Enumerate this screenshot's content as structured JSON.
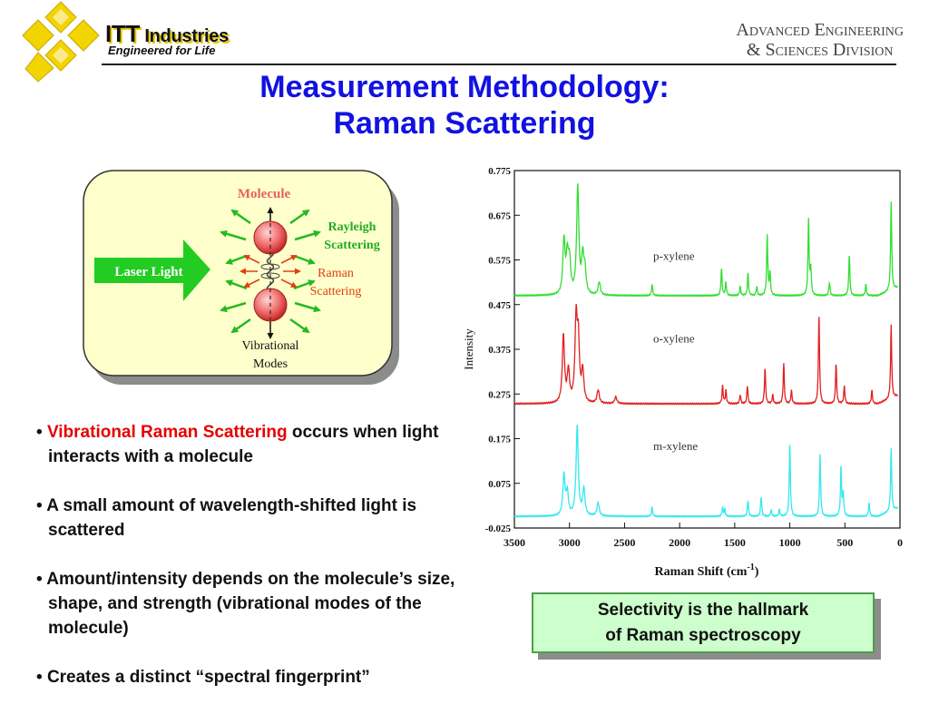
{
  "header": {
    "brand_itt": "ITT",
    "brand_industries": "Industries",
    "tagline": "Engineered for Life",
    "division_line1": "Advanced Engineering",
    "division_line2": "& Sciences Division",
    "logo_icon": "itt-logo-icon",
    "brand_color": "#f2d400"
  },
  "title": {
    "line1": "Measurement Methodology:",
    "line2": "Raman Scattering",
    "color": "#1212e0"
  },
  "diagram": {
    "molecule_label": "Molecule",
    "laser_label": "Laser Light",
    "rayleigh_line1": "Rayleigh",
    "rayleigh_line2": "Scattering",
    "raman_line1": "Raman",
    "raman_line2": "Scattering",
    "vib_line1": "Vibrational",
    "vib_line2": "Modes",
    "colors": {
      "panel": "#ffffcc",
      "laser": "#22cc22",
      "rayleigh": "#22bb22",
      "raman": "#e04010",
      "molecule_label": "#e86060"
    }
  },
  "bullets": [
    {
      "highlight": "Vibrational Raman Scattering",
      "text": " occurs when light interacts with a molecule"
    },
    {
      "highlight": "",
      "text": "A small amount of wavelength-shifted light is scattered"
    },
    {
      "highlight": "",
      "text": "Amount/intensity depends on  the molecule’s size, shape, and strength (vibrational modes of the molecule)"
    },
    {
      "highlight": "",
      "text": "Creates a distinct “spectral fingerprint”"
    }
  ],
  "callout": {
    "line1": "Selectivity is the hallmark",
    "line2": "of Raman spectroscopy"
  },
  "chart_data": {
    "type": "line",
    "title": "",
    "xlabel": "Raman Shift (cm",
    "xlabel_sup": "-1",
    "xlabel_close": ")",
    "ylabel": "Intensity",
    "xlim": [
      3500,
      0
    ],
    "ylim": [
      -0.025,
      0.775
    ],
    "x_ticks": [
      3500,
      3000,
      2500,
      2000,
      1500,
      1000,
      500,
      0
    ],
    "y_ticks": [
      -0.025,
      0.075,
      0.175,
      0.275,
      0.375,
      0.475,
      0.575,
      0.675,
      0.775
    ],
    "y_tick_labels": [
      "-0.025",
      "0.075",
      "0.175",
      "0.275",
      "0.375",
      "0.475",
      "0.575",
      "0.675",
      "0.775"
    ],
    "grid": false,
    "series": [
      {
        "name": "p-xylene",
        "color": "#33dd33",
        "baseline": 0.495,
        "label_at": [
          2240,
          0.575
        ],
        "peaks": [
          [
            3050,
            0.12
          ],
          [
            3020,
            0.08
          ],
          [
            3000,
            0.07
          ],
          [
            2925,
            0.24
          ],
          [
            2880,
            0.08
          ],
          [
            2860,
            0.05
          ],
          [
            2730,
            0.03
          ],
          [
            2250,
            0.025
          ],
          [
            1620,
            0.06
          ],
          [
            1580,
            0.03
          ],
          [
            1450,
            0.02
          ],
          [
            1380,
            0.05
          ],
          [
            1300,
            0.02
          ],
          [
            1205,
            0.135
          ],
          [
            1180,
            0.05
          ],
          [
            830,
            0.17
          ],
          [
            810,
            0.06
          ],
          [
            640,
            0.03
          ],
          [
            460,
            0.09
          ],
          [
            310,
            0.025
          ],
          [
            80,
            0.2
          ]
        ]
      },
      {
        "name": "o-xylene",
        "color": "#e02020",
        "baseline": 0.253,
        "label_at": [
          2240,
          0.39
        ],
        "peaks": [
          [
            3055,
            0.15
          ],
          [
            3010,
            0.07
          ],
          [
            2940,
            0.18
          ],
          [
            2920,
            0.13
          ],
          [
            2880,
            0.07
          ],
          [
            2740,
            0.03
          ],
          [
            2580,
            0.015
          ],
          [
            1610,
            0.04
          ],
          [
            1580,
            0.03
          ],
          [
            1450,
            0.02
          ],
          [
            1385,
            0.04
          ],
          [
            1225,
            0.08
          ],
          [
            1155,
            0.02
          ],
          [
            1055,
            0.09
          ],
          [
            985,
            0.03
          ],
          [
            735,
            0.2
          ],
          [
            580,
            0.09
          ],
          [
            505,
            0.04
          ],
          [
            255,
            0.03
          ],
          [
            80,
            0.165
          ]
        ]
      },
      {
        "name": "m-xylene",
        "color": "#33e8f0",
        "baseline": 0.001,
        "label_at": [
          2240,
          0.15
        ],
        "peaks": [
          [
            3050,
            0.09
          ],
          [
            3020,
            0.05
          ],
          [
            2930,
            0.2
          ],
          [
            2870,
            0.06
          ],
          [
            2740,
            0.03
          ],
          [
            2250,
            0.02
          ],
          [
            1610,
            0.02
          ],
          [
            1590,
            0.015
          ],
          [
            1380,
            0.035
          ],
          [
            1260,
            0.045
          ],
          [
            1170,
            0.015
          ],
          [
            1095,
            0.015
          ],
          [
            1000,
            0.165
          ],
          [
            725,
            0.138
          ],
          [
            535,
            0.11
          ],
          [
            515,
            0.05
          ],
          [
            280,
            0.03
          ],
          [
            80,
            0.14
          ]
        ]
      }
    ]
  }
}
